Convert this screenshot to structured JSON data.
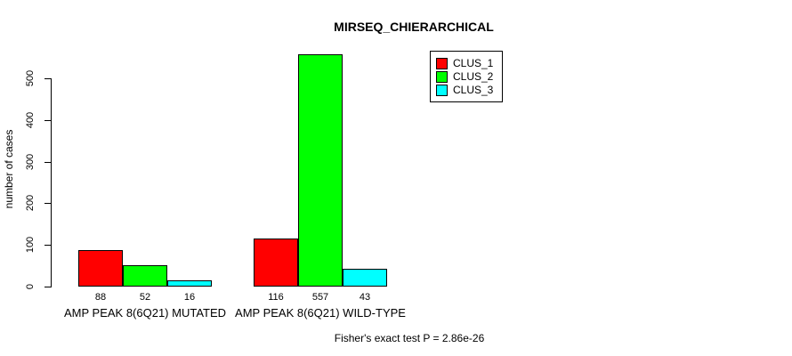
{
  "chart_data": {
    "type": "bar",
    "title": "MIRSEQ_CHIERARCHICAL",
    "xlabel": "",
    "ylabel": "number of cases",
    "yticks": [
      0,
      100,
      200,
      300,
      400,
      500
    ],
    "ylim": [
      0,
      560
    ],
    "grid": false,
    "legend_position": "top-right",
    "categories": [
      "AMP PEAK 8(6Q21) MUTATED",
      "AMP PEAK 8(6Q21) WILD-TYPE"
    ],
    "series": [
      {
        "name": "CLUS_1",
        "color": "#ff0000",
        "values": [
          88,
          116
        ]
      },
      {
        "name": "CLUS_2",
        "color": "#00ff00",
        "values": [
          52,
          557
        ]
      },
      {
        "name": "CLUS_3",
        "color": "#00ffff",
        "values": [
          16,
          43
        ]
      }
    ],
    "annotation": "Fisher's exact test P = 2.86e-26"
  }
}
